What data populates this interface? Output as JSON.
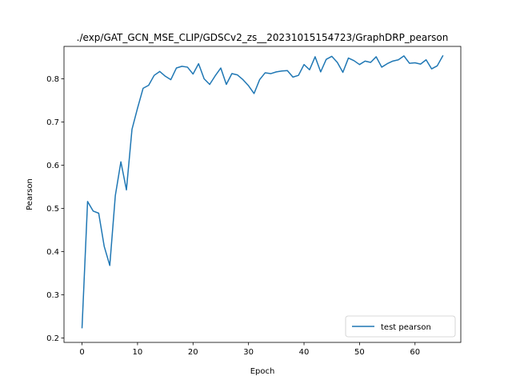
{
  "chart_data": {
    "type": "line",
    "title": "./exp/GAT_GCN_MSE_CLIP/GDSCv2_zs__20231015154723/GraphDRP_pearson",
    "xlabel": "Epoch",
    "ylabel": "Pearson",
    "xlim": [
      -3.25,
      68.25
    ],
    "ylim": [
      0.19,
      0.875
    ],
    "xticks": [
      0,
      10,
      20,
      30,
      40,
      50,
      60
    ],
    "yticks": [
      0.2,
      0.3,
      0.4,
      0.5,
      0.6,
      0.7,
      0.8
    ],
    "xtick_labels": [
      "0",
      "10",
      "20",
      "30",
      "40",
      "50",
      "60"
    ],
    "ytick_labels": [
      "0.2",
      "0.3",
      "0.4",
      "0.5",
      "0.6",
      "0.7",
      "0.8"
    ],
    "grid": false,
    "legend_position": "lower-right",
    "series": [
      {
        "name": "test pearson",
        "color": "#1f77b4",
        "x": [
          0,
          1,
          2,
          3,
          4,
          5,
          6,
          7,
          8,
          9,
          10,
          11,
          12,
          13,
          14,
          15,
          16,
          17,
          18,
          19,
          20,
          21,
          22,
          23,
          24,
          25,
          26,
          27,
          28,
          29,
          30,
          31,
          32,
          33,
          34,
          35,
          36,
          37,
          38,
          39,
          40,
          41,
          42,
          43,
          44,
          45,
          46,
          47,
          48,
          49,
          50,
          51,
          52,
          53,
          54,
          55,
          56,
          57,
          58,
          59,
          60,
          61,
          62,
          63,
          64,
          65
        ],
        "y": [
          0.224,
          0.516,
          0.494,
          0.489,
          0.412,
          0.368,
          0.53,
          0.608,
          0.543,
          0.683,
          0.732,
          0.778,
          0.785,
          0.808,
          0.817,
          0.806,
          0.798,
          0.825,
          0.829,
          0.827,
          0.811,
          0.835,
          0.8,
          0.787,
          0.807,
          0.825,
          0.787,
          0.812,
          0.809,
          0.798,
          0.784,
          0.766,
          0.798,
          0.814,
          0.812,
          0.816,
          0.818,
          0.819,
          0.804,
          0.808,
          0.833,
          0.821,
          0.851,
          0.816,
          0.845,
          0.852,
          0.838,
          0.815,
          0.848,
          0.842,
          0.833,
          0.841,
          0.838,
          0.851,
          0.827,
          0.835,
          0.841,
          0.844,
          0.853,
          0.836,
          0.837,
          0.834,
          0.844,
          0.823,
          0.83,
          0.853
        ]
      }
    ]
  }
}
